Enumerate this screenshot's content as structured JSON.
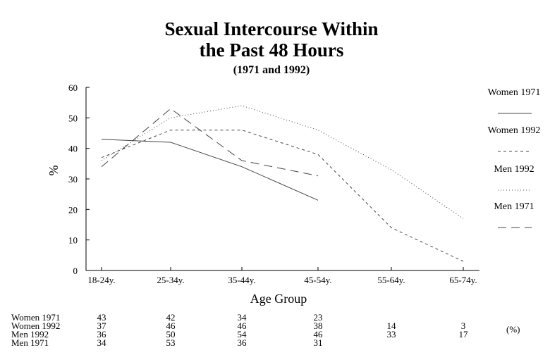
{
  "chart_data": {
    "type": "line",
    "title": "Sexual Intercourse Within",
    "title_line2": "the Past 48 Hours",
    "subtitle": "(1971 and 1992)",
    "xlabel": "Age Group",
    "ylabel": "%",
    "categories": [
      "18-24y.",
      "25-34y.",
      "35-44y.",
      "45-54y.",
      "55-64y.",
      "65-74y."
    ],
    "ylim": [
      0,
      60
    ],
    "yticks": [
      0,
      10,
      20,
      30,
      40,
      50,
      60
    ],
    "grid": false,
    "legend_position": "right",
    "series": [
      {
        "name": "Women 1971",
        "style": "solid",
        "values": [
          43,
          42,
          34,
          23,
          null,
          null
        ]
      },
      {
        "name": "Women 1992",
        "style": "short-dash",
        "values": [
          37,
          46,
          46,
          38,
          14,
          3
        ]
      },
      {
        "name": "Men 1992",
        "style": "dotted",
        "values": [
          36,
          50,
          54,
          46,
          33,
          17
        ]
      },
      {
        "name": "Men 1971",
        "style": "long-dash",
        "values": [
          34,
          53,
          36,
          31,
          null,
          null
        ]
      }
    ],
    "table_unit": "(%)",
    "colors": {
      "line": "#444444",
      "text": "#000000",
      "background": "#ffffff"
    }
  }
}
